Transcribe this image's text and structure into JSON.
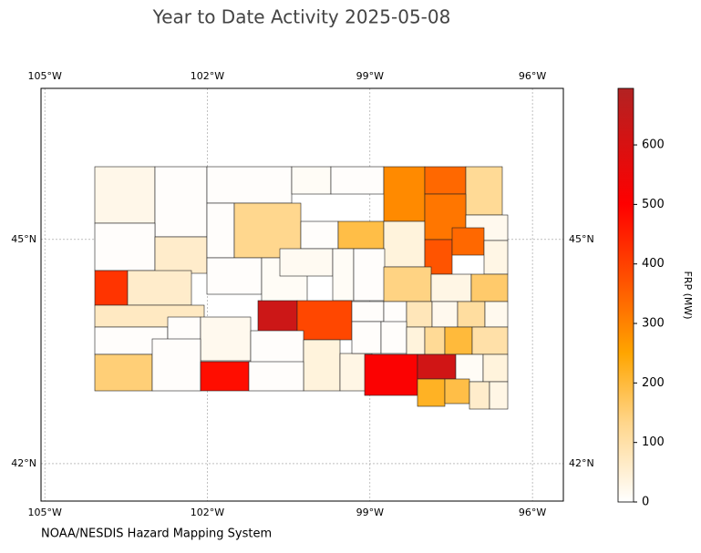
{
  "chart_data": {
    "type": "map",
    "title": "Year to Date Activity 2025-05-08",
    "source": "NOAA/NESDIS Hazard Mapping System",
    "xlim": [
      -105.07,
      -95.43
    ],
    "ylim": [
      41.5,
      47.02
    ],
    "xticks": [
      {
        "value": -105,
        "label": "105°W"
      },
      {
        "value": -102,
        "label": "102°W"
      },
      {
        "value": -99,
        "label": "99°W"
      },
      {
        "value": -96,
        "label": "96°W"
      }
    ],
    "yticks": [
      {
        "value": 45,
        "label": "45°N"
      },
      {
        "value": 42,
        "label": "42°N"
      }
    ],
    "grid": true,
    "colorbar": {
      "label": "FRP (MW)",
      "lim": [
        0,
        695
      ],
      "ticks": [
        0,
        100,
        200,
        300,
        400,
        500,
        600
      ]
    },
    "values": [
      25,
      5,
      5,
      10,
      5,
      290,
      340,
      120,
      5,
      60,
      5,
      130,
      5,
      190,
      40,
      320,
      20,
      370,
      340,
      30,
      420,
      60,
      5,
      10,
      15,
      10,
      5,
      140,
      30,
      160,
      70,
      630,
      390,
      5,
      5,
      80,
      20,
      110,
      20,
      5,
      5,
      20,
      5,
      40,
      30,
      5,
      5,
      40,
      120,
      200,
      100,
      150,
      5,
      480,
      5,
      510,
      620,
      10,
      40,
      220,
      190,
      60,
      30
    ]
  }
}
